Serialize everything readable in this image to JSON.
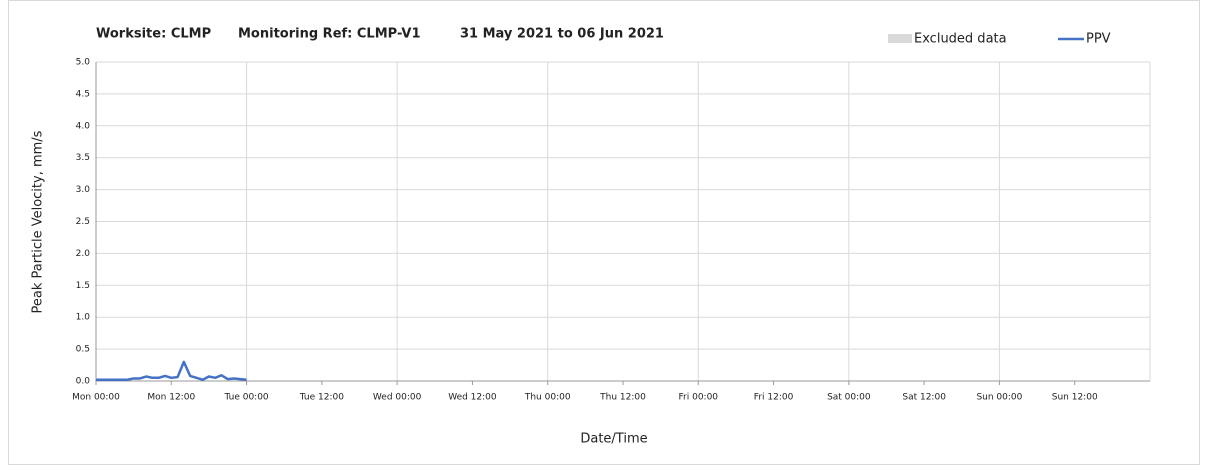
{
  "chart_data": {
    "type": "line",
    "title": [
      "Worksite: CLMP",
      "Monitoring Ref: CLMP-V1",
      "31 May 2021 to 06 Jun 2021"
    ],
    "xlabel": "Date/Time",
    "ylabel": "Peak Particle Velocity, mm/s",
    "x": [
      0,
      1,
      2,
      3,
      4,
      5,
      6,
      7,
      8,
      9,
      10,
      11,
      12,
      13,
      14,
      15,
      16,
      17,
      18,
      19,
      20,
      21,
      22,
      23,
      24
    ],
    "series": [
      {
        "name": "PPV",
        "color": "#4472c4",
        "values": [
          0.02,
          0.02,
          0.02,
          0.02,
          0.02,
          0.02,
          0.04,
          0.04,
          0.07,
          0.05,
          0.05,
          0.08,
          0.05,
          0.06,
          0.3,
          0.08,
          0.05,
          0.02,
          0.07,
          0.05,
          0.09,
          0.03,
          0.04,
          0.03,
          0.02
        ]
      }
    ],
    "excluded": {
      "name": "Excluded data",
      "color": "#d9d9d9"
    },
    "xlim": [
      0,
      168
    ],
    "xticks": [
      {
        "value": 0,
        "label": "Mon 00:00"
      },
      {
        "value": 12,
        "label": "Mon 12:00"
      },
      {
        "value": 24,
        "label": "Tue 00:00"
      },
      {
        "value": 36,
        "label": "Tue 12:00"
      },
      {
        "value": 48,
        "label": "Wed 00:00"
      },
      {
        "value": 60,
        "label": "Wed 12:00"
      },
      {
        "value": 72,
        "label": "Thu 00:00"
      },
      {
        "value": 84,
        "label": "Thu 12:00"
      },
      {
        "value": 96,
        "label": "Fri 00:00"
      },
      {
        "value": 108,
        "label": "Fri 12:00"
      },
      {
        "value": 120,
        "label": "Sat 00:00"
      },
      {
        "value": 132,
        "label": "Sat 12:00"
      },
      {
        "value": 144,
        "label": "Sun 00:00"
      },
      {
        "value": 156,
        "label": "Sun 12:00"
      }
    ],
    "ylim": [
      0,
      5
    ],
    "yticks": [
      {
        "value": 0,
        "label": "0.0"
      },
      0.5,
      {
        "value": 1,
        "label": "1.0"
      },
      1.5,
      {
        "value": 2,
        "label": "2.0"
      },
      2.5,
      {
        "value": 3,
        "label": "3.0"
      },
      3.5,
      {
        "value": 4,
        "label": "4.0"
      },
      4.5,
      {
        "value": 5,
        "label": "5.0"
      }
    ],
    "grid": true
  }
}
